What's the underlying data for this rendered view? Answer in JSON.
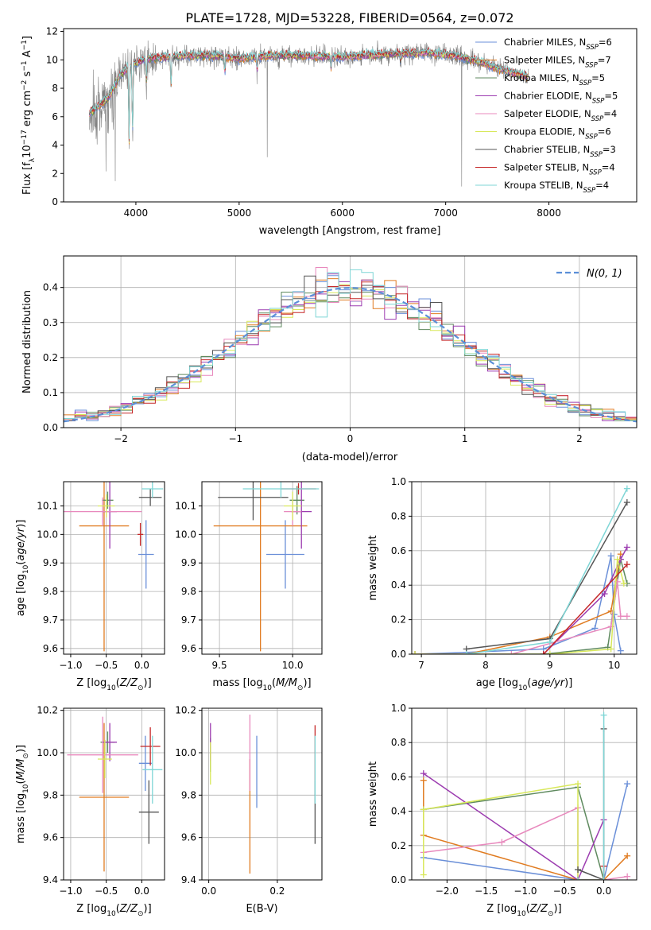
{
  "colors": [
    "#6a8fd8",
    "#e07b20",
    "#5f8a5f",
    "#9c3cb0",
    "#e889bd",
    "#d8e85a",
    "#555555",
    "#c62828",
    "#7fd6d6"
  ],
  "spectrum_color": "#808080",
  "chart_data": [
    {
      "type": "line",
      "title": "PLATE=1728, MJD=53228, FIBERID=0564, z=0.072",
      "xlabel": "wavelength [Angstrom, rest frame]",
      "ylabel": "Flux [fλ10⁻¹⁷ erg cm⁻² s⁻¹ A⁻¹]",
      "xlim": [
        3300,
        8850
      ],
      "ylim": [
        0,
        12.2
      ],
      "xticks": [
        4000,
        5000,
        6000,
        7000,
        8000
      ],
      "yticks": [
        0,
        2,
        4,
        6,
        8,
        10,
        12
      ],
      "grid": false,
      "legend": "upper right",
      "legend_entries": [
        {
          "prefix": "Chabrier MILES, N",
          "sub": "SSP",
          "suffix": "=6"
        },
        {
          "prefix": "Salpeter MILES, N",
          "sub": "SSP",
          "suffix": "=7"
        },
        {
          "prefix": "Kroupa MILES, N",
          "sub": "SSP",
          "suffix": "=5"
        },
        {
          "prefix": "Chabrier ELODIE, N",
          "sub": "SSP",
          "suffix": "=5"
        },
        {
          "prefix": "Salpeter ELODIE, N",
          "sub": "SSP",
          "suffix": "=4"
        },
        {
          "prefix": "Kroupa ELODIE, N",
          "sub": "SSP",
          "suffix": "=6"
        },
        {
          "prefix": "Chabrier STELIB, N",
          "sub": "SSP",
          "suffix": "=3"
        },
        {
          "prefix": "Salpeter STELIB, N",
          "sub": "SSP",
          "suffix": "=4"
        },
        {
          "prefix": "Kroupa STELIB, N",
          "sub": "SSP",
          "suffix": "=4"
        }
      ],
      "continuum_x": [
        3550,
        3650,
        3750,
        3850,
        3950,
        4100,
        4300,
        4500,
        4800,
        5000,
        5300,
        5600,
        6000,
        6400,
        6800,
        7100,
        7300,
        7500,
        7700,
        7800
      ],
      "continuum_y": [
        6.2,
        6.8,
        7.5,
        9.0,
        9.6,
        10.1,
        10.2,
        10.3,
        10.3,
        10.1,
        10.3,
        10.3,
        10.2,
        10.4,
        10.5,
        10.3,
        9.9,
        9.4,
        9.0,
        8.8
      ]
    },
    {
      "type": "line",
      "xlabel": "(data-model)/error",
      "ylabel": "Normed distribution",
      "xlim": [
        -2.5,
        2.5
      ],
      "ylim": [
        0,
        0.49
      ],
      "xticks": [
        -2,
        -1,
        0,
        1,
        2
      ],
      "xtick_labels": [
        "−2",
        "−1",
        "0",
        "1",
        "2"
      ],
      "yticks": [
        0.0,
        0.1,
        0.2,
        0.3,
        0.4
      ],
      "ytick_labels": [
        "0.0",
        "0.1",
        "0.2",
        "0.3",
        "0.4"
      ],
      "grid": true,
      "legend": "upper right",
      "legend_label": "N(0, 1)",
      "histogram_bins": 50
    },
    {
      "type": "scatter",
      "xlabel": "Z [log10(Z/Z⊙)]",
      "ylabel": "age  [log10(age/yr)]",
      "xlim": [
        -1.1,
        0.32
      ],
      "ylim": [
        9.58,
        10.185
      ],
      "xticks": [
        -1.0,
        -0.5,
        0.0
      ],
      "xtick_labels": [
        "−1.0",
        "−0.5",
        "0.0"
      ],
      "yticks": [
        9.6,
        9.7,
        9.8,
        9.9,
        10.0,
        10.1
      ],
      "ytick_labels": [
        "9.6",
        "9.7",
        "9.8",
        "9.9",
        "10.0",
        "10.1"
      ],
      "points": [
        {
          "x": 0.06,
          "xerr": 0.11,
          "y": 9.93,
          "yerr": 0.12
        },
        {
          "x": -0.53,
          "xerr": 0.35,
          "y": 10.03,
          "yerr": 0.44
        },
        {
          "x": -0.48,
          "xerr": 0.08,
          "y": 10.12,
          "yerr": 0.03
        },
        {
          "x": -0.45,
          "xerr": 0.1,
          "y": 10.08,
          "yerr": 0.13
        },
        {
          "x": -0.55,
          "xerr": 0.55,
          "y": 10.08,
          "yerr": 0.05
        },
        {
          "x": -0.5,
          "xerr": 0.12,
          "y": 10.1,
          "yerr": 0.04
        },
        {
          "x": 0.12,
          "xerr": 0.16,
          "y": 10.13,
          "yerr": 0.03
        },
        {
          "x": -0.02,
          "xerr": 0.04,
          "y": 10.0,
          "yerr": 0.04
        },
        {
          "x": 0.15,
          "xerr": 0.15,
          "y": 10.16,
          "yerr": 0.03
        }
      ]
    },
    {
      "type": "scatter",
      "xlabel": "mass [log10(M/M⊙)]",
      "xlim": [
        9.38,
        10.2
      ],
      "ylim": [
        9.58,
        10.185
      ],
      "xticks": [
        9.5,
        10.0
      ],
      "xtick_labels": [
        "9.5",
        "10.0"
      ],
      "yticks": [
        9.6,
        9.7,
        9.8,
        9.9,
        10.0,
        10.1
      ],
      "ytick_labels": [
        "9.6",
        "9.7",
        "9.8",
        "9.9",
        "10.0",
        "10.1"
      ],
      "points": [
        {
          "x": 9.95,
          "xerr": 0.13,
          "y": 9.93,
          "yerr": 0.12
        },
        {
          "x": 9.78,
          "xerr": 0.32,
          "y": 10.03,
          "yerr": 0.44
        },
        {
          "x": 10.03,
          "xerr": 0.05,
          "y": 10.12,
          "yerr": 0.05
        },
        {
          "x": 10.06,
          "xerr": 0.07,
          "y": 10.08,
          "yerr": 0.13
        },
        {
          "x": 10.0,
          "xerr": 0.06,
          "y": 10.08,
          "yerr": 0.05
        },
        {
          "x": 10.0,
          "xerr": 0.06,
          "y": 10.1,
          "yerr": 0.05
        },
        {
          "x": 9.73,
          "xerr": 0.24,
          "y": 10.13,
          "yerr": 0.08
        },
        {
          "x": 10.04,
          "xerr": 0.12,
          "y": 10.16,
          "yerr": 0.02
        },
        {
          "x": 9.92,
          "xerr": 0.26,
          "y": 10.16,
          "yerr": 0.03
        }
      ]
    },
    {
      "type": "line",
      "ylabel": "mass weight",
      "xlabel": "age  [log10(age/yr)]",
      "xlim": [
        6.85,
        10.35
      ],
      "ylim": [
        0,
        1.0
      ],
      "xticks": [
        7,
        8,
        9,
        10
      ],
      "xtick_labels": [
        "7",
        "8",
        "9",
        "10"
      ],
      "yticks": [
        0.0,
        0.2,
        0.4,
        0.6,
        0.8,
        1.0
      ],
      "ytick_labels": [
        "0.0",
        "0.2",
        "0.4",
        "0.6",
        "0.8",
        "1.0"
      ],
      "grid": true,
      "series": [
        {
          "x": [
            6.9,
            7.7,
            8.9,
            9.7,
            9.95,
            10.0,
            10.1
          ],
          "y": [
            0.0,
            0.01,
            0.03,
            0.15,
            0.57,
            0.23,
            0.02
          ]
        },
        {
          "x": [
            6.9,
            7.7,
            9.0,
            9.95,
            10.1
          ],
          "y": [
            0.0,
            0.0,
            0.1,
            0.25,
            0.58
          ]
        },
        {
          "x": [
            6.9,
            8.9,
            9.9,
            10.1,
            10.2
          ],
          "y": [
            0.0,
            0.0,
            0.04,
            0.55,
            0.41
          ]
        },
        {
          "x": [
            8.9,
            9.85,
            10.1,
            10.2
          ],
          "y": [
            0.0,
            0.35,
            0.55,
            0.62
          ]
        },
        {
          "x": [
            6.9,
            8.4,
            9.95,
            10.05,
            10.1,
            10.2
          ],
          "y": [
            0.0,
            0.0,
            0.16,
            0.42,
            0.22,
            0.22
          ]
        },
        {
          "x": [
            6.9,
            7.7,
            9.0,
            9.95,
            10.05,
            10.15
          ],
          "y": [
            0.0,
            0.0,
            0.0,
            0.03,
            0.55,
            0.41
          ]
        },
        {
          "x": [
            7.7,
            9.0,
            10.2
          ],
          "y": [
            0.03,
            0.09,
            0.88
          ]
        },
        {
          "x": [
            8.9,
            10.2
          ],
          "y": [
            0.0,
            0.52
          ]
        },
        {
          "x": [
            7.7,
            9.0,
            10.2
          ],
          "y": [
            0.0,
            0.07,
            0.96
          ]
        }
      ]
    },
    {
      "type": "scatter",
      "xlabel": "Z [log10(Z/Z⊙)]",
      "ylabel": "mass [log10(M/M⊙)]",
      "xlim": [
        -1.1,
        0.32
      ],
      "ylim": [
        9.4,
        10.21
      ],
      "xticks": [
        -1.0,
        -0.5,
        0.0
      ],
      "xtick_labels": [
        "−1.0",
        "−0.5",
        "0.0"
      ],
      "yticks": [
        9.4,
        9.6,
        9.8,
        10.0,
        10.2
      ],
      "ytick_labels": [
        "9.4",
        "9.6",
        "9.8",
        "10.0",
        "10.2"
      ],
      "points": [
        {
          "x": 0.05,
          "xerr": 0.09,
          "y": 9.95,
          "yerr": 0.13
        },
        {
          "x": -0.53,
          "xerr": 0.35,
          "y": 9.79,
          "yerr": 0.35
        },
        {
          "x": -0.48,
          "xerr": 0.1,
          "y": 10.05,
          "yerr": 0.05
        },
        {
          "x": -0.45,
          "xerr": 0.1,
          "y": 10.05,
          "yerr": 0.09
        },
        {
          "x": -0.55,
          "xerr": 0.5,
          "y": 9.99,
          "yerr": 0.18
        },
        {
          "x": -0.52,
          "xerr": 0.1,
          "y": 9.97,
          "yerr": 0.09
        },
        {
          "x": 0.1,
          "xerr": 0.14,
          "y": 9.72,
          "yerr": 0.15
        },
        {
          "x": 0.12,
          "xerr": 0.14,
          "y": 10.03,
          "yerr": 0.09
        },
        {
          "x": 0.15,
          "xerr": 0.14,
          "y": 9.92,
          "yerr": 0.16
        }
      ]
    },
    {
      "type": "scatter",
      "xlabel": "E(B-V)",
      "xlim": [
        -0.02,
        0.33
      ],
      "ylim": [
        9.4,
        10.21
      ],
      "xticks": [
        0.0,
        0.2
      ],
      "xtick_labels": [
        "0.0",
        "0.2"
      ],
      "yticks": [
        9.4,
        9.6,
        9.8,
        10.0,
        10.2
      ],
      "ytick_labels": [
        "9.4",
        "9.6",
        "9.8",
        "10.0",
        "10.2"
      ],
      "points": [
        {
          "x": 0.14,
          "y": 9.91,
          "yerr": 0.17
        },
        {
          "x": 0.12,
          "y": 9.7,
          "yerr": 0.27
        },
        {
          "x": 0.005,
          "y": 9.99,
          "yerr": 0.08
        },
        {
          "x": 0.005,
          "y": 10.05,
          "yerr": 0.09
        },
        {
          "x": 0.12,
          "y": 10.0,
          "yerr": 0.18
        },
        {
          "x": 0.005,
          "y": 9.95,
          "yerr": 0.1
        },
        {
          "x": 0.31,
          "y": 9.72,
          "yerr": 0.15
        },
        {
          "x": 0.31,
          "y": 10.0,
          "yerr": 0.13
        },
        {
          "x": 0.31,
          "y": 9.92,
          "yerr": 0.16
        }
      ]
    },
    {
      "type": "line",
      "ylabel": "mass weight",
      "xlabel": "Z [log10(Z/Z⊙)]",
      "xlim": [
        -2.45,
        0.42
      ],
      "ylim": [
        0,
        1.0
      ],
      "xticks": [
        -2.0,
        -1.5,
        -1.0,
        -0.5,
        0.0
      ],
      "xtick_labels": [
        "−2.0",
        "−1.5",
        "−1.0",
        "−0.5",
        "0.0"
      ],
      "yticks": [
        0.0,
        0.2,
        0.4,
        0.6,
        0.8,
        1.0
      ],
      "ytick_labels": [
        "0.0",
        "0.2",
        "0.4",
        "0.6",
        "0.8",
        "1.0"
      ],
      "grid": true,
      "series": [
        {
          "x": [
            -2.3,
            -0.33,
            0.0,
            0.3
          ],
          "y": [
            0.13,
            0.0,
            0.0,
            0.56
          ]
        },
        {
          "x": [
            -2.3,
            -2.3,
            -0.33,
            0.0,
            0.3
          ],
          "y": [
            0.58,
            0.26,
            0.0,
            0.0,
            0.14
          ]
        },
        {
          "x": [
            -2.3,
            -0.33,
            0.0
          ],
          "y": [
            0.41,
            0.54,
            0.0
          ]
        },
        {
          "x": [
            -2.3,
            -0.33,
            0.0
          ],
          "y": [
            0.62,
            0.0,
            0.35
          ]
        },
        {
          "x": [
            -2.3,
            -1.3,
            -0.33,
            -0.33,
            0.0,
            0.3
          ],
          "y": [
            0.16,
            0.22,
            0.42,
            0.0,
            0.0,
            0.02
          ]
        },
        {
          "x": [
            -2.3,
            -2.3,
            -0.33,
            -0.33,
            0.0
          ],
          "y": [
            0.03,
            0.41,
            0.56,
            0.0,
            0.0
          ]
        },
        {
          "x": [
            -0.33,
            0.0,
            0.0
          ],
          "y": [
            0.06,
            0.0,
            0.88
          ]
        },
        {
          "x": [
            -0.33,
            0.0,
            0.0
          ],
          "y": [
            0.0,
            0.0,
            0.08
          ]
        },
        {
          "x": [
            -0.33,
            0.0,
            0.0
          ],
          "y": [
            0.0,
            0.0,
            0.96
          ]
        }
      ]
    }
  ]
}
